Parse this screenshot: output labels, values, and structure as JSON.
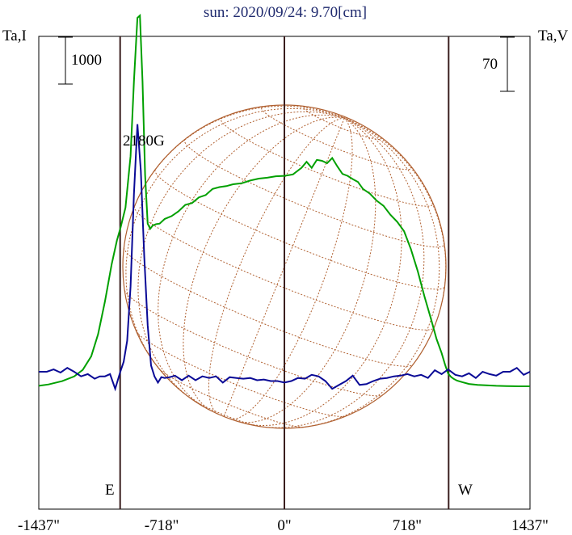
{
  "chart_data": {
    "type": "line",
    "title": "sun: 2020/09/24: 9.70[cm]",
    "ylabel_left": "Ta,I",
    "ylabel_right": "Ta,V",
    "scalebar_left": "1000",
    "scalebar_right": "70",
    "xlim": [
      -1437,
      1437
    ],
    "x_ticks": [
      "-1437\"",
      "-718\"",
      "0\"",
      "718\"",
      "1437\""
    ],
    "x_tick_values": [
      -1437,
      -718,
      0,
      718,
      1437
    ],
    "limb_markers": [
      {
        "label": "E",
        "x": -958
      },
      {
        "label": "W",
        "x": 958
      }
    ],
    "center_line_x": 0,
    "annotations": [
      {
        "text": "2180G",
        "x": -880
      }
    ],
    "series": [
      {
        "name": "I",
        "color": "#00a000",
        "axis": "left",
        "x": [
          -1437,
          -1380,
          -1300,
          -1230,
          -1180,
          -1130,
          -1090,
          -1050,
          -1010,
          -980,
          -958,
          -930,
          -900,
          -880,
          -860,
          -845,
          -830,
          -815,
          -800,
          -785,
          -770,
          -750,
          -730,
          -700,
          -660,
          -620,
          -580,
          -540,
          -500,
          -460,
          -420,
          -380,
          -340,
          -300,
          -250,
          -200,
          -150,
          -100,
          -50,
          0,
          50,
          100,
          130,
          160,
          190,
          220,
          250,
          280,
          310,
          340,
          370,
          400,
          430,
          460,
          500,
          540,
          580,
          620,
          660,
          700,
          740,
          780,
          820,
          860,
          890,
          920,
          940,
          958,
          975,
          990,
          1010,
          1040,
          1080,
          1130,
          1180,
          1240,
          1300,
          1370,
          1437
        ],
        "y": [
          -300,
          -270,
          -200,
          -100,
          40,
          330,
          800,
          1500,
          2300,
          2800,
          3080,
          3500,
          4600,
          6200,
          7550,
          7600,
          6200,
          4200,
          3160,
          3050,
          3120,
          3150,
          3160,
          3260,
          3320,
          3420,
          3560,
          3600,
          3720,
          3770,
          3900,
          3940,
          3960,
          4000,
          4020,
          4080,
          4120,
          4140,
          4170,
          4180,
          4210,
          4350,
          4480,
          4350,
          4520,
          4500,
          4450,
          4560,
          4380,
          4220,
          4180,
          4110,
          4050,
          3900,
          3800,
          3650,
          3540,
          3350,
          3200,
          3000,
          2620,
          2150,
          1600,
          1100,
          700,
          400,
          150,
          -40,
          -110,
          -150,
          -190,
          -220,
          -260,
          -280,
          -290,
          -300,
          -305,
          -310,
          -310
        ]
      },
      {
        "name": "V",
        "color": "#0a0a96",
        "axis": "right",
        "x": [
          -1437,
          -1390,
          -1350,
          -1310,
          -1270,
          -1230,
          -1190,
          -1150,
          -1110,
          -1080,
          -1050,
          -1020,
          -990,
          -960,
          -940,
          -920,
          -900,
          -880,
          -860,
          -840,
          -820,
          -800,
          -780,
          -760,
          -740,
          -720,
          -700,
          -670,
          -640,
          -600,
          -560,
          -520,
          -480,
          -440,
          -400,
          -360,
          -320,
          -280,
          -240,
          -200,
          -160,
          -120,
          -80,
          -40,
          0,
          40,
          80,
          120,
          160,
          200,
          240,
          280,
          320,
          360,
          400,
          440,
          480,
          520,
          560,
          600,
          640,
          680,
          720,
          760,
          800,
          840,
          880,
          920,
          958,
          1000,
          1040,
          1080,
          1120,
          1160,
          1200,
          1240,
          1280,
          1320,
          1360,
          1400,
          1437
        ],
        "y": [
          0,
          0,
          3,
          -1,
          5,
          0,
          -6,
          -3,
          -9,
          -6,
          -6,
          -3,
          -22,
          0,
          13,
          40,
          110,
          230,
          320,
          260,
          150,
          60,
          8,
          -6,
          -14,
          -7,
          -8,
          -7,
          -5,
          -11,
          -5,
          -11,
          -6,
          -8,
          -6,
          -14,
          -7,
          -8,
          -9,
          -8,
          -11,
          -10,
          -12,
          -12,
          -14,
          -12,
          -8,
          -9,
          -4,
          -6,
          -12,
          -22,
          -17,
          -12,
          -5,
          -17,
          -16,
          -12,
          -9,
          -8,
          -6,
          -5,
          -3,
          -6,
          -4,
          -8,
          2,
          -3,
          3,
          -4,
          -6,
          -2,
          -8,
          0,
          -3,
          -5,
          0,
          0,
          5,
          -4,
          0
        ]
      }
    ],
    "grid": false,
    "legend": "none"
  }
}
